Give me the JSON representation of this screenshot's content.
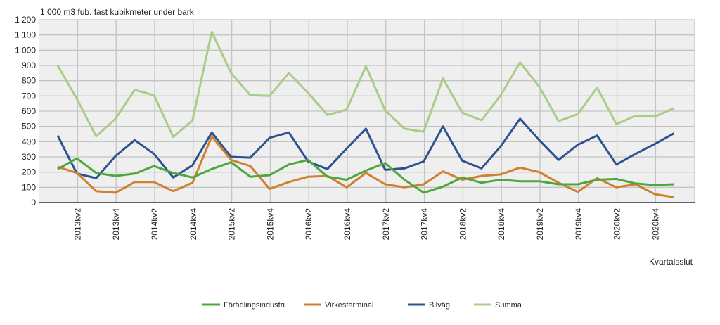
{
  "chart_data": {
    "type": "line",
    "title": "",
    "ylabel": "1 000 m3 fub. fast kubikmeter under bark",
    "xlabel": "Kvartalsslut",
    "ylim": [
      0,
      1200
    ],
    "yticks": [
      "0",
      "100",
      "200",
      "300",
      "400",
      "500",
      "600",
      "700",
      "800",
      "900",
      "1 000",
      "1 100",
      "1 200"
    ],
    "grid": true,
    "legend": "bottom",
    "x": [
      "2013kv1",
      "2013kv2",
      "2013kv3",
      "2013kv4",
      "2014kv1",
      "2014kv2",
      "2014kv3",
      "2014kv4",
      "2015kv1",
      "2015kv2",
      "2015kv3",
      "2015kv4",
      "2016kv1",
      "2016kv2",
      "2016kv3",
      "2016kv4",
      "2017kv1",
      "2017kv2",
      "2017kv3",
      "2017kv4",
      "2018kv1",
      "2018kv2",
      "2018kv3",
      "2018kv4",
      "2019kv1",
      "2019kv2",
      "2019kv3",
      "2019kv4",
      "2020kv1",
      "2020kv2",
      "2020kv3",
      "2020kv4",
      "2021kv1"
    ],
    "xtick_labels": [
      "2013kv2",
      "2013kv4",
      "2014kv2",
      "2014kv4",
      "2015kv2",
      "2015kv4",
      "2016kv2",
      "2016kv4",
      "2017kv2",
      "2017kv4",
      "2018kv2",
      "2018kv4",
      "2019kv2",
      "2019kv4",
      "2020kv2",
      "2020kv4"
    ],
    "series": [
      {
        "name": "Förädlingsindustri",
        "color": "#4ea73c",
        "values": [
          220,
          290,
          195,
          175,
          190,
          240,
          195,
          165,
          220,
          265,
          170,
          180,
          250,
          280,
          170,
          150,
          210,
          260,
          150,
          65,
          105,
          165,
          130,
          150,
          140,
          140,
          120,
          120,
          150,
          155,
          125,
          115,
          120
        ]
      },
      {
        "name": "Virkesterminal",
        "color": "#d07f2c",
        "values": [
          235,
          195,
          75,
          65,
          135,
          135,
          75,
          130,
          435,
          280,
          240,
          90,
          135,
          170,
          175,
          100,
          195,
          120,
          100,
          120,
          205,
          150,
          175,
          185,
          230,
          200,
          130,
          70,
          160,
          100,
          120,
          55,
          35
        ]
      },
      {
        "name": "Bilväg",
        "color": "#2e5190",
        "values": [
          440,
          190,
          160,
          305,
          410,
          320,
          165,
          245,
          460,
          300,
          295,
          425,
          460,
          270,
          220,
          355,
          485,
          215,
          225,
          270,
          500,
          275,
          225,
          370,
          550,
          410,
          280,
          380,
          440,
          250,
          320,
          385,
          455
        ]
      },
      {
        "name": "Summa",
        "color": "#a9cd86",
        "values": [
          900,
          680,
          435,
          550,
          740,
          705,
          430,
          540,
          1120,
          850,
          705,
          700,
          850,
          720,
          575,
          610,
          895,
          605,
          485,
          465,
          815,
          590,
          540,
          705,
          920,
          760,
          535,
          580,
          755,
          515,
          570,
          565,
          620
        ]
      }
    ]
  }
}
